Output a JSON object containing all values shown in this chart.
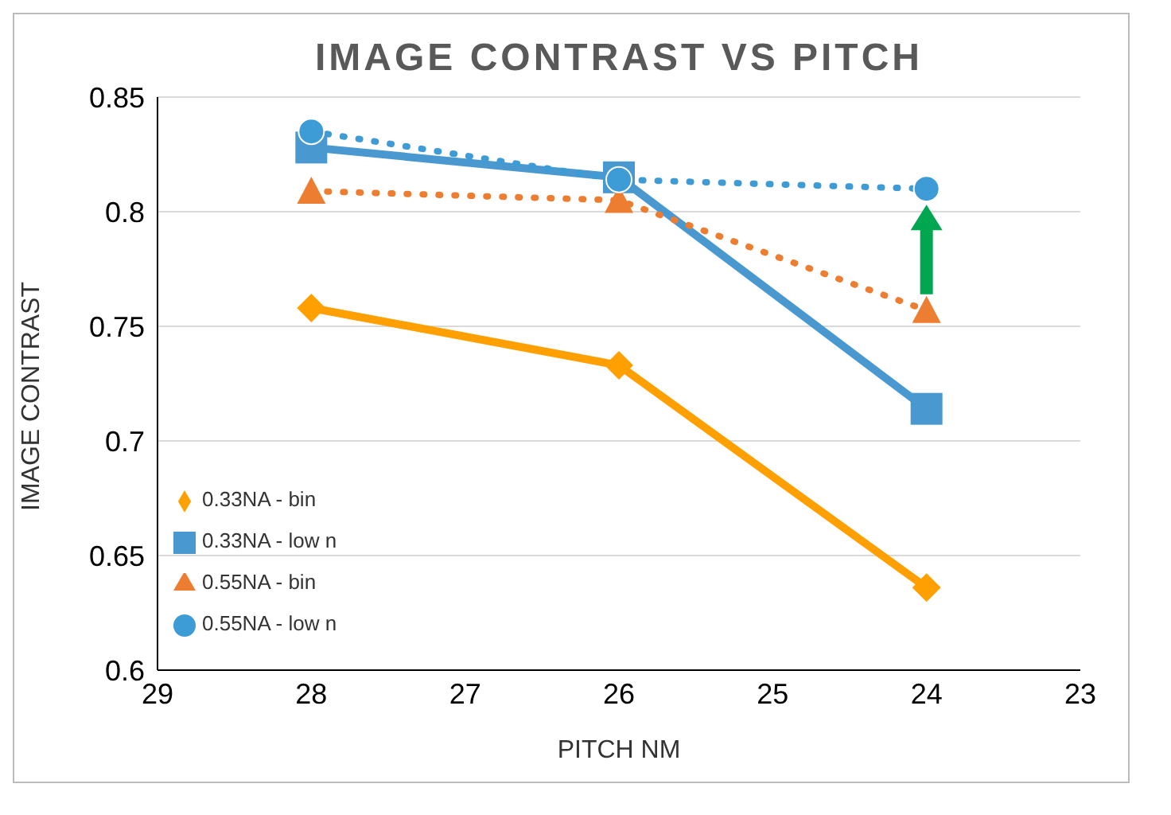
{
  "chart_data": {
    "type": "line",
    "title": "IMAGE CONTRAST VS PITCH",
    "xlabel": "PITCH NM",
    "ylabel": "IMAGE CONTRAST",
    "x": [
      28,
      26,
      24
    ],
    "series": [
      {
        "name": "0.33NA - bin",
        "color": "#ffa000",
        "values": [
          0.758,
          0.733,
          0.636
        ],
        "marker": "diamond",
        "line_style": "solid"
      },
      {
        "name": "0.33NA - low n",
        "color": "#4a98d0",
        "values": [
          0.828,
          0.815,
          0.714
        ],
        "marker": "square",
        "line_style": "solid"
      },
      {
        "name": "0.55NA - bin",
        "color": "#ed7d31",
        "values": [
          0.809,
          0.805,
          0.757
        ],
        "marker": "triangle",
        "line_style": "dotted"
      },
      {
        "name": "0.55NA - low n",
        "color": "#3d9bd6",
        "values": [
          0.835,
          0.814,
          0.81
        ],
        "marker": "circle",
        "line_style": "dotted"
      }
    ],
    "xlim": [
      29,
      23
    ],
    "xticks": [
      29,
      28,
      27,
      26,
      25,
      24,
      23
    ],
    "ylim": [
      0.6,
      0.85
    ],
    "yticks": [
      0.6,
      0.65,
      0.7,
      0.75,
      0.8,
      0.85
    ],
    "grid": "y",
    "legend": "bottom left"
  }
}
